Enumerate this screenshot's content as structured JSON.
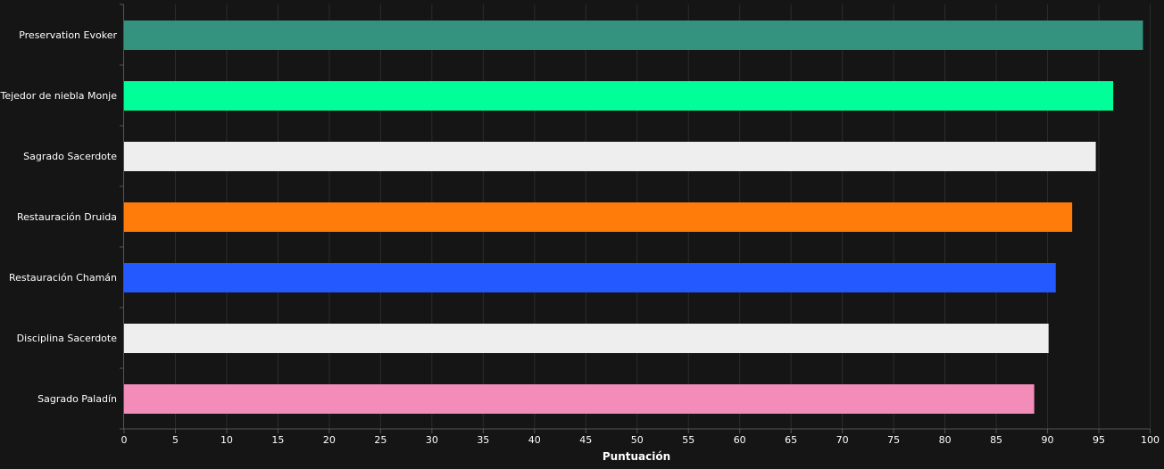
{
  "chart_data": {
    "type": "bar",
    "orientation": "horizontal",
    "categories": [
      "Preservation Evoker",
      "Tejedor de niebla Monje",
      "Sagrado Sacerdote",
      "Restauración Druida",
      "Restauración Chamán",
      "Disciplina Sacerdote",
      "Sagrado Paladín"
    ],
    "values": [
      99.3,
      96.4,
      94.7,
      92.4,
      90.8,
      90.1,
      88.7
    ],
    "colors": [
      "#33937f",
      "#00ff98",
      "#eeeeee",
      "#ff7c0a",
      "#2459ff",
      "#eeeeee",
      "#f48cba"
    ],
    "xlabel": "Puntuación",
    "ylabel": "",
    "title": "",
    "xlim": [
      0,
      100
    ],
    "xticks": [
      0,
      5,
      10,
      15,
      20,
      25,
      30,
      35,
      40,
      45,
      50,
      55,
      60,
      65,
      70,
      75,
      80,
      85,
      90,
      95,
      100
    ],
    "grid": true,
    "background": "#151515"
  }
}
